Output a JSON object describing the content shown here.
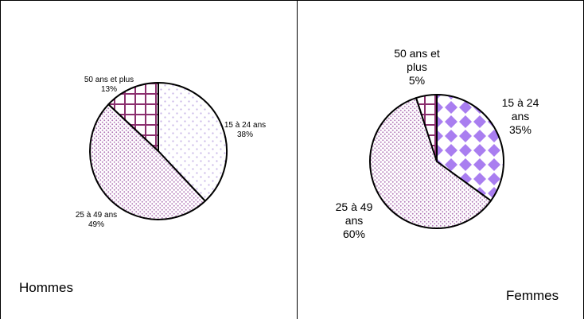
{
  "chart_data": [
    {
      "type": "pie",
      "panel_label": "Hommes",
      "legend": "none",
      "slices": [
        {
          "category": "15 à 24 ans",
          "label_lines": [
            "15 à 24 ans",
            "38%"
          ],
          "value": 38,
          "pattern": "sparse-dots",
          "pattern_color": "#c9b6e8"
        },
        {
          "category": "25 à 49 ans",
          "label_lines": [
            "25 à 49 ans",
            "49%"
          ],
          "value": 49,
          "pattern": "dense-dots",
          "pattern_color": "#b279b8"
        },
        {
          "category": "50 ans et plus",
          "label_lines": [
            "50 ans et plus",
            "13%"
          ],
          "value": 13,
          "pattern": "grid",
          "pattern_color": "#8b2f6e"
        }
      ]
    },
    {
      "type": "pie",
      "panel_label": "Femmes",
      "legend": "none",
      "slices": [
        {
          "category": "15 à 24 ans",
          "label_lines": [
            "15 à 24",
            "ans",
            "35%"
          ],
          "value": 35,
          "pattern": "diamonds",
          "pattern_color": "#a97ef0"
        },
        {
          "category": "25 à 49 ans",
          "label_lines": [
            "25 à 49",
            "ans",
            "60%"
          ],
          "value": 60,
          "pattern": "dense-dots",
          "pattern_color": "#b279b8"
        },
        {
          "category": "50 ans et plus",
          "label_lines": [
            "50 ans et",
            "plus",
            "5%"
          ],
          "value": 5,
          "pattern": "grid",
          "pattern_color": "#8b2f6e"
        }
      ]
    }
  ]
}
